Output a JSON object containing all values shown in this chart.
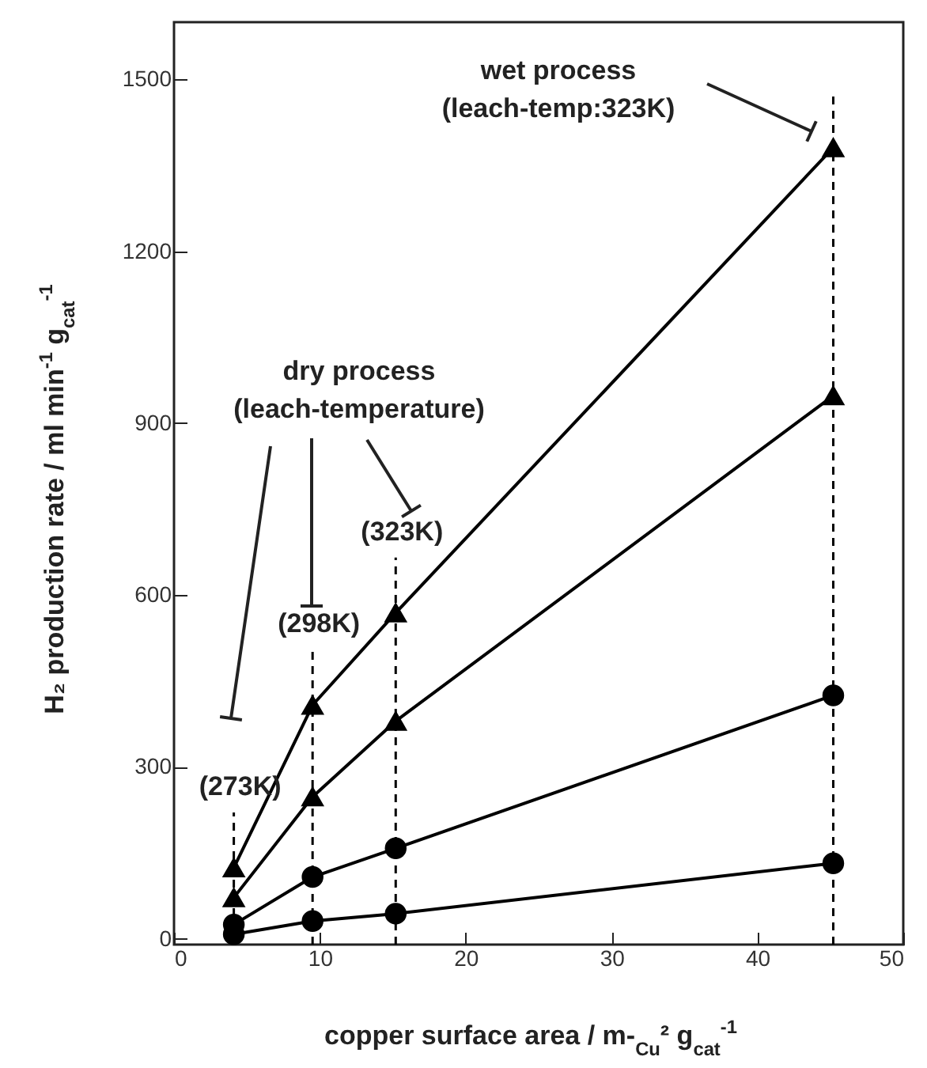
{
  "chart_data": {
    "type": "line",
    "xlabel": "copper surface area / m-$_{Cu}$² g$_{cat}$$^{-1}$",
    "ylabel": "H₂ production rate / ml min$^{-1}$ g$_{cat}$$^{-1}$",
    "x": [
      4.1,
      9.5,
      15.2,
      45.2
    ],
    "series": [
      {
        "color": "#000000",
        "marker": "triangle",
        "values": [
          124,
          408,
          569,
          1381
        ]
      },
      {
        "color": "#000000",
        "marker": "triangle",
        "values": [
          72,
          248,
          380,
          948
        ]
      },
      {
        "color": "#000000",
        "marker": "circle",
        "values": [
          25,
          108,
          158,
          425
        ]
      },
      {
        "color": "#000000",
        "marker": "circle",
        "values": [
          8,
          31,
          44,
          132
        ]
      }
    ],
    "xlim": [
      0,
      50
    ],
    "ylim": [
      -10,
      1600
    ],
    "xticks": [
      0,
      10,
      20,
      30,
      40,
      50
    ],
    "yticks": [
      0,
      300,
      600,
      900,
      1200,
      1500
    ],
    "grid": false,
    "line_style": "solid",
    "ref_lines": [
      {
        "axis": "x",
        "value": 4.1,
        "label": "(273K)",
        "line_style": "dashed",
        "color": "#000000"
      },
      {
        "axis": "x",
        "value": 9.5,
        "label": "(298K)",
        "line_style": "dashed",
        "color": "#000000"
      },
      {
        "axis": "x",
        "value": 15.2,
        "label": "(323K)",
        "line_style": "dashed",
        "color": "#000000"
      },
      {
        "axis": "x",
        "value": 45.2,
        "line_style": "dashed",
        "color": "#000000"
      }
    ],
    "annotations": [
      "dry process\n(leach-temperature)",
      "wet process\n(leach-temp:323K)"
    ]
  }
}
